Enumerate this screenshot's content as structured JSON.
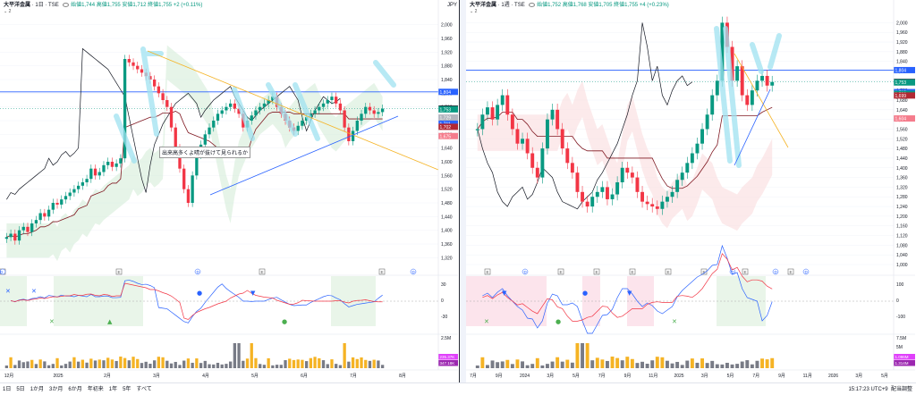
{
  "left": {
    "symbol": "大平洋金属",
    "timeframe": "1日",
    "exchange": "TSE",
    "unit": "JPY",
    "ohlc": "始値1,744 高値1,755 安値1,712 終値1,755 +2 (+0.11%)",
    "legend2": "2",
    "annotation": "出来高多くよ晴が抜けて見られるか",
    "y_ticks": [
      "2,000",
      "1,960",
      "1,920",
      "1,880",
      "1,840",
      "1,800",
      "1,760",
      "1,720",
      "1,680",
      "1,640",
      "1,600",
      "1,560",
      "1,520",
      "1,480",
      "1,440",
      "1,400",
      "1,360",
      "1,320"
    ],
    "price_tags": [
      {
        "text": "1,804",
        "color": "#2962ff"
      },
      {
        "text": "1,755",
        "color": "#131722"
      },
      {
        "text": "1,753",
        "color": "#089981"
      },
      {
        "text": "1,729",
        "color": "#b2b5be"
      },
      {
        "text": "1,711",
        "color": "#2962ff"
      },
      {
        "text": "1,702",
        "color": "#b22833"
      },
      {
        "text": "1,675",
        "color": "#f57c8c"
      }
    ],
    "x_ticks": [
      "12月",
      "2025",
      "2月",
      "3月",
      "4月",
      "5月",
      "6月",
      "7月",
      "8月"
    ],
    "osc_ticks": [
      "30",
      "0",
      "-30"
    ],
    "vol_ticks": [
      "2.5M"
    ],
    "vol_tags": [
      "235.37K",
      "347.18K"
    ],
    "event_markers": [
      "E",
      "D",
      "E",
      "E",
      "D",
      "E",
      "D"
    ]
  },
  "right": {
    "symbol": "大平洋金属",
    "timeframe": "1週",
    "exchange": "TSE",
    "unit": "JPY",
    "ohlc": "始値1,752 高値1,768 安値1,705 終値1,755 +4 (+0.23%)",
    "legend2": "2",
    "y_ticks": [
      "2,000",
      "1,960",
      "1,920",
      "1,880",
      "1,840",
      "1,800",
      "1,760",
      "1,720",
      "1,680",
      "1,640",
      "1,600",
      "1,560",
      "1,520",
      "1,480",
      "1,440",
      "1,400",
      "1,360",
      "1,320",
      "1,280",
      "1,240",
      "1,200",
      "1,160",
      "1,120",
      "1,080",
      "1,040",
      "1,000"
    ],
    "price_tags": [
      {
        "text": "1,804",
        "color": "#2962ff"
      },
      {
        "text": "1,755",
        "color": "#131722"
      },
      {
        "text": "1,753",
        "color": "#089981"
      },
      {
        "text": "1,713",
        "color": "#2962ff"
      },
      {
        "text": "1,706",
        "color": "#089981"
      },
      {
        "text": "1,699",
        "color": "#b22833"
      },
      {
        "text": "1,604",
        "color": "#f57c8c"
      }
    ],
    "x_ticks": [
      "7月",
      "9月",
      "2024",
      "3月",
      "5月",
      "7月",
      "9月",
      "11月",
      "2025",
      "3月",
      "5月",
      "7月",
      "9月",
      "11月",
      "2026",
      "3月",
      "5月"
    ],
    "osc_ticks": [
      "100",
      "0",
      "-100"
    ],
    "vol_ticks": [
      "7.5M",
      "5M",
      "2.5M"
    ],
    "vol_tags": [
      "1.096M",
      "1.314M"
    ],
    "event_markers": [
      "E",
      "D",
      "E",
      "E",
      "E",
      "E",
      "E",
      "D",
      "E",
      "D",
      "E",
      "D"
    ]
  },
  "bottom_bar": {
    "timeframes": [
      "1日",
      "5日",
      "1か月",
      "3か月",
      "6か月",
      "年初来",
      "1年",
      "5年",
      "すべて"
    ],
    "clock": "15:17:23 UTC+9",
    "adj": "配当調整"
  },
  "colors": {
    "up": "#089981",
    "down": "#f23645",
    "cloud_up": "#d5ecd9",
    "cloud_dn": "#fadcdd",
    "baseline": "#2962ff",
    "kijun": "#801922",
    "lagging": "#131722",
    "highlight": "#9fe1f0",
    "trend": "#f5b324"
  },
  "chart_data": [
    {
      "type": "candlestick",
      "title": "大平洋金属 · 1日 · TSE",
      "ylabel": "JPY",
      "ylim": [
        1300,
        2020
      ],
      "x_ticks": [
        "12月",
        "2025",
        "2月",
        "3月",
        "4月",
        "5月",
        "6月",
        "7月",
        "8月"
      ],
      "close": [
        1380,
        1390,
        1370,
        1400,
        1410,
        1395,
        1420,
        1430,
        1450,
        1440,
        1460,
        1480,
        1475,
        1490,
        1500,
        1510,
        1520,
        1530,
        1540,
        1550,
        1580,
        1560,
        1570,
        1590,
        1600,
        1585,
        1595,
        1610,
        1900,
        1890,
        1880,
        1870,
        1860,
        1850,
        1840,
        1820,
        1800,
        1780,
        1760,
        1700,
        1640,
        1580,
        1520,
        1480,
        1560,
        1620,
        1650,
        1680,
        1700,
        1720,
        1740,
        1750,
        1760,
        1770,
        1755,
        1740,
        1700,
        1720,
        1735,
        1750,
        1760,
        1770,
        1780,
        1790,
        1760,
        1740,
        1720,
        1700,
        1690,
        1705,
        1720,
        1730,
        1740,
        1750,
        1760,
        1770,
        1780,
        1790,
        1770,
        1750,
        1700,
        1660,
        1690,
        1720,
        1740,
        1760,
        1750,
        1740,
        1745,
        1755
      ],
      "series": [
        {
          "name": "ライン",
          "values": [
            1804
          ]
        }
      ],
      "annotations": [
        "出来高多くよ晴が抜けて見られるか"
      ]
    },
    {
      "type": "candlestick",
      "title": "大平洋金属 · 1週 · TSE",
      "ylabel": "JPY",
      "ylim": [
        1000,
        2020
      ],
      "x_ticks": [
        "7月",
        "9月",
        "2024",
        "3月",
        "5月",
        "7月",
        "9月",
        "11月",
        "2025",
        "3月",
        "5月",
        "7月",
        "9月",
        "11月",
        "2026",
        "3月",
        "5月"
      ],
      "close": [
        1560,
        1620,
        1650,
        1600,
        1660,
        1700,
        1620,
        1560,
        1500,
        1520,
        1460,
        1400,
        1360,
        1480,
        1600,
        1640,
        1560,
        1480,
        1420,
        1380,
        1300,
        1260,
        1240,
        1280,
        1300,
        1320,
        1270,
        1290,
        1340,
        1400,
        1380,
        1360,
        1300,
        1260,
        1250,
        1240,
        1230,
        1260,
        1280,
        1300,
        1350,
        1380,
        1420,
        1460,
        1500,
        1560,
        1620,
        1700,
        1760,
        2000,
        1900,
        1760,
        1820,
        1700,
        1660,
        1720,
        1760,
        1780,
        1740,
        1755
      ],
      "annotations": []
    }
  ]
}
